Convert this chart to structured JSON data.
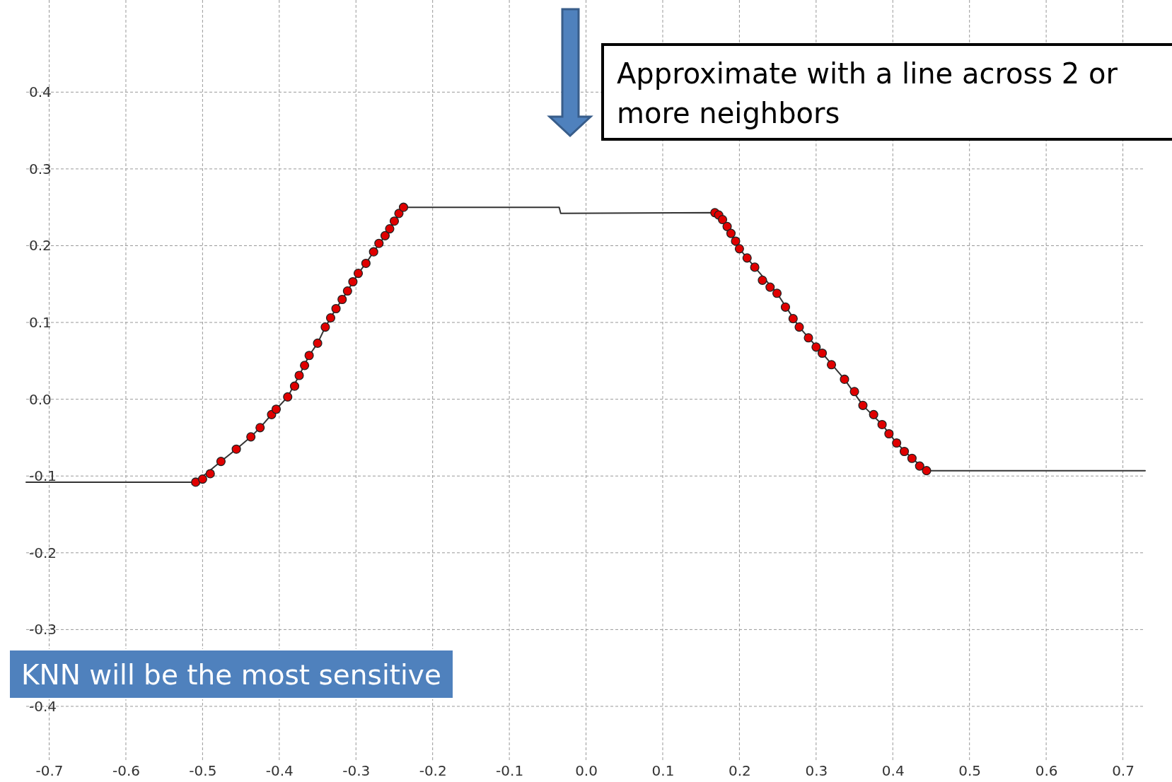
{
  "chart_data": {
    "type": "line",
    "xlim": [
      -0.73,
      0.729
    ],
    "ylim": [
      -0.47,
      0.52
    ],
    "xticks": [
      -0.7,
      -0.6,
      -0.5,
      -0.4,
      -0.3,
      -0.2,
      -0.1,
      {
        "value": 0,
        "label": "0.0"
      },
      0.1,
      0.2,
      0.3,
      0.4,
      0.5,
      0.6,
      0.7
    ],
    "yticks": [
      -0.4,
      -0.3,
      -0.2,
      -0.1,
      {
        "value": 0,
        "label": "0.0"
      },
      0.1,
      0.2,
      0.3,
      0.4
    ],
    "grid": true,
    "series": [
      {
        "color": "#333333",
        "marker": "none",
        "line_style": "solid",
        "x": [
          -0.73,
          -0.509,
          -0.476,
          -0.456,
          -0.437,
          -0.425,
          -0.404,
          -0.389,
          -0.374,
          -0.361,
          -0.35,
          -0.34,
          -0.326,
          -0.311,
          -0.297,
          -0.287,
          -0.277,
          -0.262,
          -0.25,
          -0.238,
          -0.035,
          -0.033,
          0.168,
          0.178,
          0.189,
          0.2,
          0.22,
          0.249,
          0.278,
          0.308,
          0.337,
          0.361,
          0.386,
          0.405,
          0.425,
          0.444,
          0.729
        ],
        "values": [
          -0.108,
          -0.108,
          -0.081,
          -0.065,
          -0.049,
          -0.037,
          -0.013,
          0.003,
          0.031,
          0.057,
          0.073,
          0.094,
          0.118,
          0.141,
          0.164,
          0.177,
          0.192,
          0.213,
          0.232,
          0.25,
          0.25,
          0.242,
          0.243,
          0.234,
          0.216,
          0.196,
          0.172,
          0.138,
          0.094,
          0.06,
          0.026,
          -0.008,
          -0.033,
          -0.057,
          -0.077,
          -0.093,
          -0.093
        ]
      },
      {
        "type": "scatter",
        "color": "#e00000",
        "marker": "circle",
        "x": [
          -0.509,
          -0.5,
          -0.49,
          -0.476,
          -0.456,
          -0.437,
          -0.425,
          -0.41,
          -0.404,
          -0.389,
          -0.38,
          -0.374,
          -0.367,
          -0.361,
          -0.35,
          -0.34,
          -0.333,
          -0.326,
          -0.318,
          -0.311,
          -0.304,
          -0.297,
          -0.287,
          -0.277,
          -0.27,
          -0.262,
          -0.256,
          -0.25,
          -0.244,
          -0.238,
          0.168,
          0.173,
          0.178,
          0.184,
          0.189,
          0.195,
          0.2,
          0.21,
          0.22,
          0.23,
          0.24,
          0.249,
          0.26,
          0.27,
          0.278,
          0.29,
          0.3,
          0.308,
          0.32,
          0.337,
          0.35,
          0.361,
          0.375,
          0.386,
          0.395,
          0.405,
          0.415,
          0.425,
          0.435,
          0.444
        ],
        "values": [
          -0.108,
          -0.104,
          -0.097,
          -0.081,
          -0.065,
          -0.049,
          -0.037,
          -0.02,
          -0.013,
          0.003,
          0.017,
          0.031,
          0.044,
          0.057,
          0.073,
          0.094,
          0.106,
          0.118,
          0.13,
          0.141,
          0.153,
          0.164,
          0.177,
          0.192,
          0.203,
          0.213,
          0.222,
          0.232,
          0.242,
          0.25,
          0.243,
          0.24,
          0.234,
          0.225,
          0.216,
          0.206,
          0.196,
          0.184,
          0.172,
          0.155,
          0.146,
          0.138,
          0.12,
          0.105,
          0.094,
          0.08,
          0.068,
          0.06,
          0.045,
          0.026,
          0.01,
          -0.008,
          -0.02,
          -0.033,
          -0.045,
          -0.057,
          -0.068,
          -0.077,
          -0.087,
          -0.093
        ]
      }
    ],
    "annotations": [
      "Approximate with a line across 2 or more neighbors",
      "KNN will be the most sensitive"
    ]
  }
}
